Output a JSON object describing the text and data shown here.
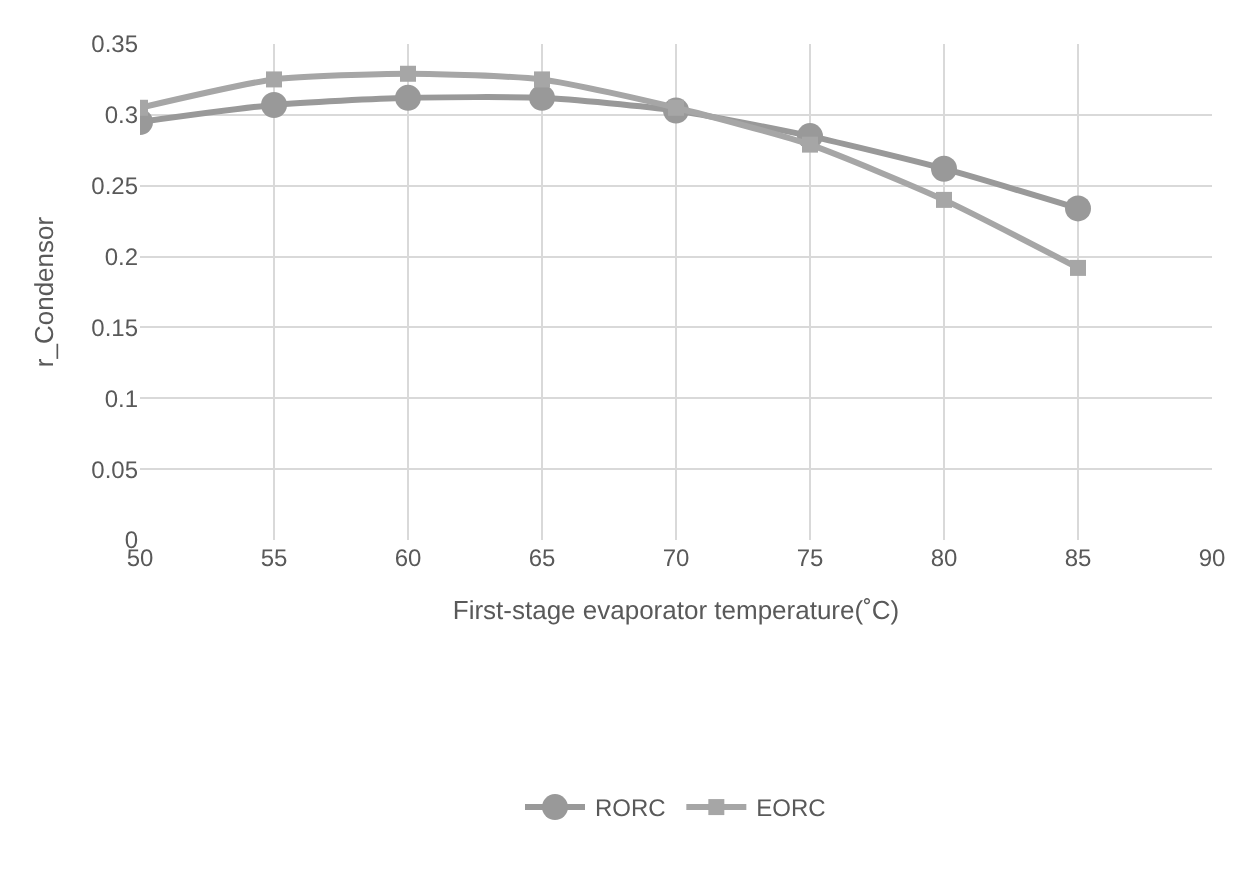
{
  "chart_data": {
    "type": "line",
    "xlabel": "First-stage evaporator temperature(˚C)",
    "ylabel": "r_Condensor",
    "x": [
      50,
      55,
      60,
      65,
      70,
      75,
      80,
      85
    ],
    "series": [
      {
        "name": "RORC",
        "color": "#999999",
        "marker": "circle",
        "values": [
          0.295,
          0.307,
          0.312,
          0.312,
          0.303,
          0.285,
          0.262,
          0.234
        ]
      },
      {
        "name": "EORC",
        "color": "#a6a6a6",
        "marker": "square",
        "values": [
          0.305,
          0.325,
          0.329,
          0.325,
          0.305,
          0.279,
          0.24,
          0.192
        ]
      }
    ],
    "xlim": [
      50,
      90
    ],
    "xticks": [
      50,
      55,
      60,
      65,
      70,
      75,
      80,
      85,
      90
    ],
    "ylim": [
      0,
      0.35
    ],
    "yticks": [
      0,
      0.05,
      0.1,
      0.15,
      0.2,
      0.25,
      0.3,
      0.35
    ],
    "grid": true,
    "legend": "bottom",
    "line_style": "solid"
  }
}
